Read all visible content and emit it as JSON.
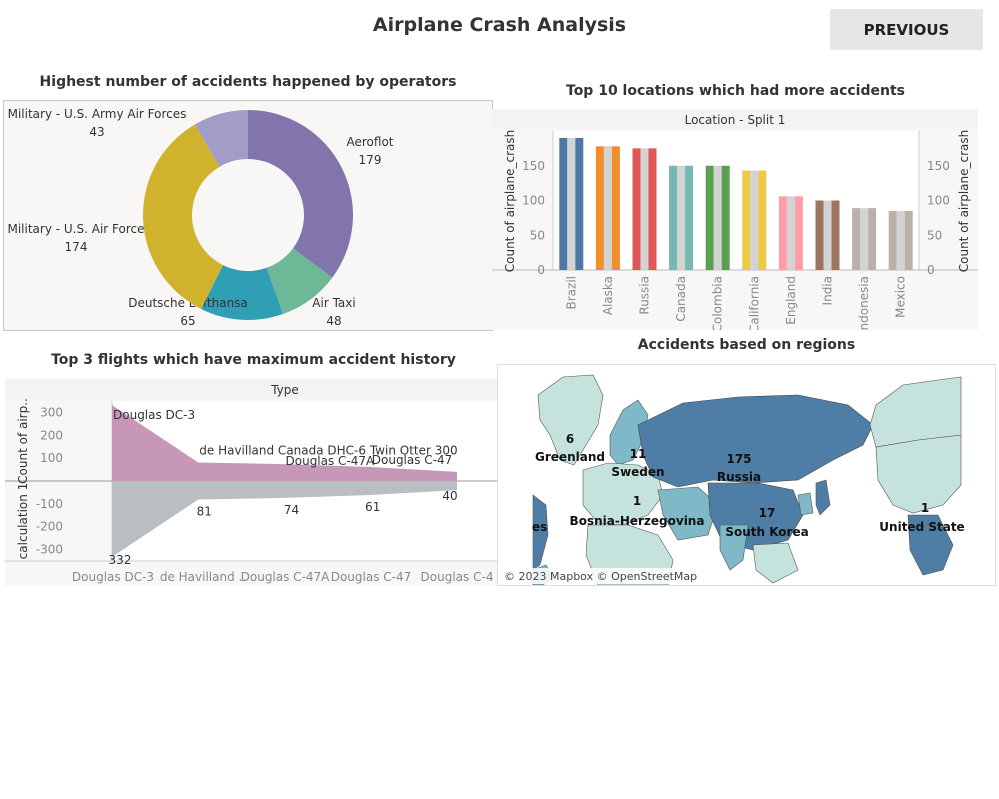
{
  "page": {
    "title": "Airplane Crash Analysis",
    "previous_button": "PREVIOUS"
  },
  "colors": {
    "aeroflot": "#8275ac",
    "air_taxi": "#6cb897",
    "lufthansa": "#2e9fb5",
    "air_force": "#d1b22c",
    "army_air_forces": "#a29cc8",
    "area_pos": "#c797b8",
    "area_neg": "#b9bec3",
    "bar_gray": "#d3d3d3",
    "map_dark": "#4e7ea6",
    "map_mid": "#7fb8c6",
    "map_light": "#c5e3dc"
  },
  "chart_data": [
    {
      "type": "pie",
      "title": "Highest number of accidents happened by operators",
      "categories": [
        "Aeroflot",
        "Air Taxi",
        "Deutsche Lufthansa",
        "Military - U.S. Air Force",
        "Military - U.S. Army Air Forces"
      ],
      "values": [
        179,
        48,
        65,
        174,
        43
      ],
      "donut": true
    },
    {
      "type": "bar",
      "title": "Top 10 locations which had more accidents",
      "header": "Location - Split 1",
      "ylabel": "Count of airplane_crash",
      "categories": [
        "Brazil",
        "Alaska",
        "Russia",
        "Canada",
        "Colombia",
        "California",
        "England",
        "India",
        "Indonesia",
        "Mexico"
      ],
      "values": [
        190,
        178,
        175,
        150,
        150,
        143,
        106,
        100,
        89,
        85
      ],
      "colors": [
        "#4e79a7",
        "#f28e2b",
        "#e15759",
        "#76b7b2",
        "#59a14f",
        "#edc948",
        "#ff9da7",
        "#9c755f",
        "#bab0ac",
        "#bab0ac"
      ],
      "yticks": [
        0,
        50,
        100,
        150
      ],
      "ylim": [
        0,
        200
      ]
    },
    {
      "type": "area",
      "title": "Top 3 flights which have maximum accident history",
      "header": "Type",
      "ylabel_top": "Count of airp..",
      "ylabel_bottom": "calculation 1",
      "categories": [
        "Douglas DC-3",
        "de Havilland ..",
        "Douglas C-47A",
        "Douglas C-47",
        "Douglas C-4"
      ],
      "series": [
        {
          "values": [
            332,
            81,
            74,
            61,
            40
          ]
        },
        {
          "values": [
            -332,
            -81,
            -74,
            -61,
            -40
          ]
        }
      ],
      "value_labels": [
        "332",
        "81",
        "74",
        "61",
        "40"
      ],
      "annotations": [
        "Douglas DC-3",
        "de Havilland Canada DHC-6 Twin Otter 300",
        "Douglas C-47A",
        "Douglas C-47"
      ],
      "yticks_top": [
        100,
        200,
        300
      ],
      "yticks_bottom": [
        -100,
        -200,
        -300
      ],
      "ylim": [
        -350,
        350
      ]
    }
  ],
  "map": {
    "title": "Accidents based on regions",
    "labels": [
      {
        "count": "6",
        "name": "Greenland"
      },
      {
        "count": "11",
        "name": "Sweden"
      },
      {
        "count": "175",
        "name": "Russia"
      },
      {
        "count": "1",
        "name": "Bosnia-Herzegovina"
      },
      {
        "count": "17",
        "name": "South Korea"
      },
      {
        "count": "1",
        "name": "United State"
      },
      {
        "count": "",
        "name": "es"
      }
    ],
    "attribution": "© 2023 Mapbox © OpenStreetMap"
  }
}
